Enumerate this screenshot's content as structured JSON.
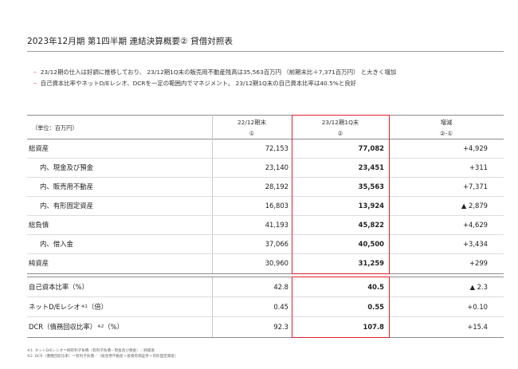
{
  "title": "2023年12月期 第1四半期 連結決算概要② 貸借対照表",
  "bullets": [
    {
      "dash": "–",
      "text": "23/12期の仕入は好調に推移しており、 23/12期1Q末の販売用不動産残高は35,563百万円 （前期末比＋7,371百万円） と大きく増加"
    },
    {
      "dash": "–",
      "text": "自己資本比率やネットD/Eレシオ、DCRを一定の範囲内でマネジメント。 23/12期1Q末の自己資本比率は40.5%と良好"
    }
  ],
  "table": {
    "unit": "（単位：百万円）",
    "headers": [
      {
        "label": "22/12期末",
        "sub": "①"
      },
      {
        "label": "23/12期1Q末",
        "sub": "②"
      },
      {
        "label": "増減",
        "sub": "②-①"
      }
    ],
    "rows": [
      {
        "label": "総資産",
        "a": "72,153",
        "b": "77,082",
        "c": "+4,929"
      },
      {
        "label": "内、現金及び預金",
        "a": "23,140",
        "b": "23,451",
        "c": "+311"
      },
      {
        "label": "内、販売用不動産",
        "a": "28,192",
        "b": "35,563",
        "c": "+7,371"
      },
      {
        "label": "内、有形固定資産",
        "a": "16,803",
        "b": "13,924",
        "c": "▲ 2,879"
      },
      {
        "label": "総負債",
        "a": "41,193",
        "b": "45,822",
        "c": "+4,629"
      },
      {
        "label": "内、借入金",
        "a": "37,066",
        "b": "40,500",
        "c": "+3,434"
      },
      {
        "label": "純資産",
        "a": "30,960",
        "b": "31,259",
        "c": "+299"
      }
    ],
    "ratios": [
      {
        "label": "自己資本比率（%）",
        "sup": "",
        "suffix": "",
        "a": "42.8",
        "b": "40.5",
        "c": "▲ 2.3"
      },
      {
        "label": "ネットD/Eレシオ",
        "sup": "※1",
        "suffix": "（倍）",
        "a": "0.45",
        "b": "0.55",
        "c": "+0.10"
      },
      {
        "label": "DCR（債務回収比率）",
        "sup": "※2",
        "suffix": "（%）",
        "a": "92.3",
        "b": "107.8",
        "c": "+15.4"
      }
    ]
  },
  "footnotes": [
    "※1. ネットD/Eレシオ＝純有利子負債（有利子負債－現金及び預金）／純資産",
    "※2. DCR（債務回収比率）＝有利子負債／（販売用不動産＋投資有価証券＋有形固定資産）"
  ],
  "colors": {
    "accent": "#e0202a",
    "dash": "#c8102e",
    "rule": "#9a9a9a"
  }
}
